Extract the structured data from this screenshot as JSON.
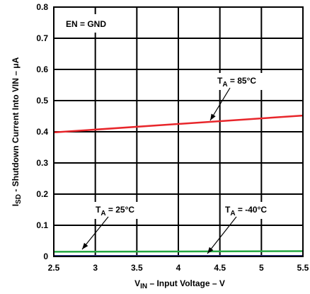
{
  "chart_data": {
    "type": "line",
    "xlabel_main": "V",
    "xlabel_sub": "IN",
    "xlabel_rest": " – Input Voltage – V",
    "ylabel_main": "I",
    "ylabel_sub": "SD",
    "ylabel_rest": " - Shutdown Current Into VIN – μA",
    "xlim": [
      2.5,
      5.5
    ],
    "ylim": [
      0,
      0.8
    ],
    "x_ticks": [
      "2.5",
      "3",
      "3.5",
      "4",
      "4.5",
      "5",
      "5.5"
    ],
    "y_ticks": [
      "0",
      "0.1",
      "0.2",
      "0.3",
      "0.4",
      "0.5",
      "0.6",
      "0.7",
      "0.8"
    ],
    "grid": true,
    "condition_label": "EN = GND",
    "series": [
      {
        "label_main": "T",
        "label_sub": "A",
        "label_rest": " = 85°C",
        "color": "#e8262b",
        "x": [
          2.5,
          5.5
        ],
        "y": [
          0.398,
          0.452
        ]
      },
      {
        "label_main": "T",
        "label_sub": "A",
        "label_rest": " = 25°C",
        "color": "#26a844",
        "x": [
          2.5,
          5.5
        ],
        "y": [
          0.015,
          0.017
        ]
      },
      {
        "label_main": "T",
        "label_sub": "A",
        "label_rest": " = -40°C",
        "color": "#2e2f8f",
        "x": [
          2.5,
          5.5
        ],
        "y": [
          0.001,
          0.001
        ]
      }
    ]
  }
}
